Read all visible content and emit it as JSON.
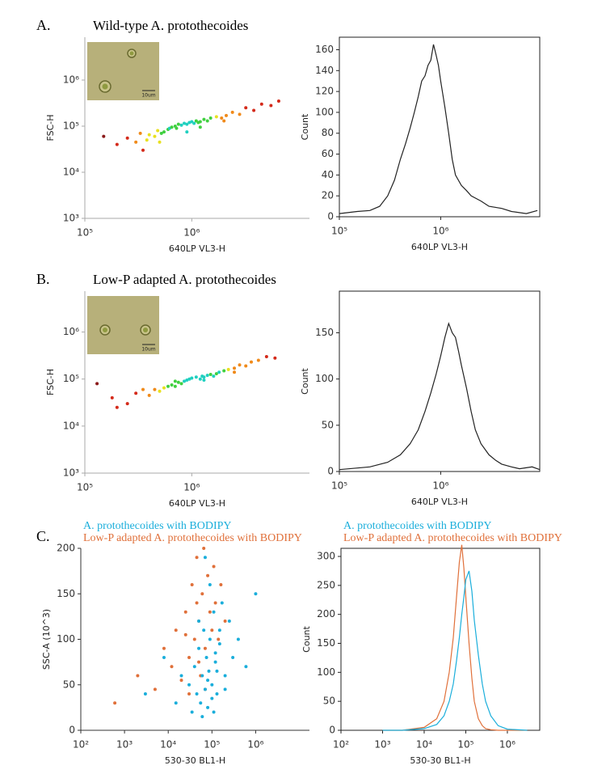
{
  "chart_data": [
    {
      "type": "scatter",
      "panel_label": "A.",
      "title": "Wild-type A. protothecoides",
      "inset_scale": "10um",
      "xlabel": "640LP VL3-H",
      "ylabel": "FSC-H",
      "xscale": "log",
      "yscale": "log",
      "xlim": [
        100000,
        12600000
      ],
      "ylim": [
        1000,
        8500000
      ],
      "xticks": [
        {
          "value": 100000,
          "label": "10⁵"
        },
        {
          "value": 1000000,
          "label": "10⁶"
        }
      ],
      "yticks": [
        {
          "value": 1000,
          "label": "10³"
        },
        {
          "value": 10000,
          "label": "10⁴"
        },
        {
          "value": 100000,
          "label": "10⁵"
        },
        {
          "value": 1000000,
          "label": "10⁶"
        }
      ],
      "color": "#8b1a1a",
      "density_colors": [
        "#8b1a1a",
        "#d42a1a",
        "#f08a1a",
        "#e8e020",
        "#40d040",
        "#20d0c0"
      ],
      "x": [
        150000,
        200000,
        250000,
        300000,
        330000,
        380000,
        400000,
        450000,
        480000,
        520000,
        550000,
        600000,
        620000,
        650000,
        700000,
        720000,
        750000,
        800000,
        850000,
        900000,
        950000,
        1000000,
        1050000,
        1100000,
        1150000,
        1200000,
        1300000,
        1400000,
        1500000,
        1700000,
        1900000,
        2100000,
        2400000,
        2800000,
        3200000,
        3800000,
        4500000,
        5500000,
        6500000,
        350000,
        500000,
        900000,
        1200000,
        2000000
      ],
      "values": [
        60000,
        40000,
        55000,
        45000,
        70000,
        50000,
        65000,
        60000,
        80000,
        70000,
        75000,
        85000,
        90000,
        95000,
        100000,
        90000,
        110000,
        105000,
        115000,
        110000,
        120000,
        125000,
        115000,
        130000,
        120000,
        125000,
        140000,
        130000,
        150000,
        160000,
        150000,
        170000,
        200000,
        180000,
        250000,
        220000,
        300000,
        280000,
        350000,
        30000,
        45000,
        75000,
        95000,
        130000
      ]
    },
    {
      "type": "line",
      "xlabel": "640LP VL3-H",
      "ylabel": "Count",
      "xscale": "log",
      "frame": true,
      "xlim": [
        100000,
        9500000
      ],
      "ylim": [
        0,
        172
      ],
      "xticks": [
        {
          "value": 100000,
          "label": "10⁵"
        },
        {
          "value": 1000000,
          "label": "10⁶"
        }
      ],
      "yticks": [
        0,
        20,
        40,
        60,
        80,
        100,
        120,
        140,
        160
      ],
      "color": "#222222",
      "x": [
        100000,
        150000,
        200000,
        250000,
        300000,
        350000,
        400000,
        450000,
        500000,
        550000,
        600000,
        650000,
        700000,
        750000,
        800000,
        850000,
        900000,
        950000,
        1000000,
        1100000,
        1200000,
        1300000,
        1400000,
        1600000,
        1800000,
        2000000,
        2500000,
        3000000,
        4000000,
        5000000,
        7000000,
        9000000
      ],
      "values": [
        3,
        5,
        6,
        10,
        20,
        35,
        55,
        70,
        85,
        100,
        115,
        130,
        135,
        145,
        150,
        165,
        155,
        145,
        130,
        105,
        80,
        55,
        40,
        30,
        25,
        20,
        15,
        10,
        8,
        5,
        3,
        6
      ]
    },
    {
      "type": "scatter",
      "panel_label": "B.",
      "title": "Low-P adapted A. protothecoides",
      "inset_scale": "10um",
      "xlabel": "640LP VL3-H",
      "ylabel": "FSC-H",
      "xscale": "log",
      "yscale": "log",
      "xlim": [
        100000,
        12600000
      ],
      "ylim": [
        1000,
        7400000
      ],
      "xticks": [
        {
          "value": 100000,
          "label": "10⁵"
        },
        {
          "value": 1000000,
          "label": "10⁶"
        }
      ],
      "yticks": [
        {
          "value": 1000,
          "label": "10³"
        },
        {
          "value": 10000,
          "label": "10⁴"
        },
        {
          "value": 100000,
          "label": "10⁵"
        },
        {
          "value": 1000000,
          "label": "10⁶"
        }
      ],
      "color": "#8b1a1a",
      "density_colors": [
        "#8b1a1a",
        "#d42a1a",
        "#f08a1a",
        "#e8e020",
        "#40d040",
        "#20d0c0"
      ],
      "x": [
        130000,
        180000,
        250000,
        300000,
        400000,
        450000,
        500000,
        550000,
        600000,
        650000,
        700000,
        750000,
        800000,
        850000,
        900000,
        950000,
        1000000,
        1100000,
        1200000,
        1250000,
        1300000,
        1400000,
        1500000,
        1600000,
        1700000,
        1800000,
        2000000,
        2200000,
        2500000,
        2800000,
        3200000,
        3600000,
        4200000,
        5000000,
        6000000,
        200000,
        350000,
        700000,
        1300000,
        2500000
      ],
      "values": [
        80000,
        40000,
        30000,
        50000,
        45000,
        60000,
        55000,
        65000,
        70000,
        75000,
        70000,
        85000,
        80000,
        90000,
        95000,
        100000,
        105000,
        110000,
        100000,
        115000,
        110000,
        120000,
        125000,
        115000,
        130000,
        140000,
        150000,
        160000,
        170000,
        200000,
        190000,
        230000,
        250000,
        300000,
        280000,
        25000,
        60000,
        90000,
        95000,
        140000
      ]
    },
    {
      "type": "line",
      "xlabel": "640LP VL3-H",
      "ylabel": "Count",
      "xscale": "log",
      "frame": true,
      "xlim": [
        100000,
        9500000
      ],
      "ylim": [
        0,
        195
      ],
      "xticks": [
        {
          "value": 100000,
          "label": "10⁵"
        },
        {
          "value": 1000000,
          "label": "10⁶"
        }
      ],
      "yticks": [
        0,
        50,
        100,
        150
      ],
      "color": "#222222",
      "x": [
        100000,
        200000,
        300000,
        400000,
        500000,
        600000,
        700000,
        800000,
        900000,
        1000000,
        1100000,
        1200000,
        1300000,
        1400000,
        1500000,
        1600000,
        1800000,
        2000000,
        2200000,
        2500000,
        3000000,
        3500000,
        4000000,
        5000000,
        6000000,
        8000000,
        9500000
      ],
      "values": [
        2,
        5,
        10,
        18,
        30,
        45,
        65,
        85,
        105,
        125,
        145,
        160,
        150,
        145,
        130,
        115,
        90,
        65,
        45,
        30,
        18,
        12,
        8,
        5,
        3,
        5,
        2
      ]
    },
    {
      "type": "scatter",
      "panel_label": "C.",
      "xlabel": "530-30 BL1-H",
      "ylabel": "SSC-A (10^3)",
      "xscale": "log",
      "xlim": [
        100,
        17000000
      ],
      "ylim": [
        0,
        200
      ],
      "xticks": [
        {
          "value": 100,
          "label": "10²"
        },
        {
          "value": 1000,
          "label": "10³"
        },
        {
          "value": 10000,
          "label": "10⁴"
        },
        {
          "value": 100000,
          "label": "10⁵"
        },
        {
          "value": 1000000,
          "label": "10⁶"
        }
      ],
      "yticks": [
        0,
        50,
        100,
        150,
        200
      ],
      "series": [
        {
          "name": "A. protothecoides with BODIPY",
          "color": "#1aaedb",
          "x": [
            3000,
            8000,
            15000,
            20000,
            30000,
            35000,
            40000,
            45000,
            50000,
            55000,
            60000,
            65000,
            70000,
            75000,
            80000,
            85000,
            90000,
            100000,
            110000,
            120000,
            130000,
            150000,
            170000,
            200000,
            250000,
            300000,
            400000,
            600000,
            1000000,
            60000,
            80000,
            100000,
            120000,
            70000,
            90000,
            150000,
            50000,
            200000,
            130000,
            110000
          ],
          "values": [
            40,
            80,
            30,
            60,
            50,
            20,
            70,
            40,
            90,
            30,
            60,
            110,
            45,
            80,
            25,
            65,
            100,
            50,
            130,
            75,
            40,
            95,
            140,
            60,
            120,
            80,
            100,
            70,
            150,
            15,
            55,
            35,
            85,
            190,
            160,
            110,
            120,
            45,
            65,
            20
          ]
        },
        {
          "name": "Low-P adapted A. protothecoides with BODIPY",
          "color": "#e0703a",
          "x": [
            600,
            2000,
            5000,
            8000,
            12000,
            15000,
            20000,
            25000,
            30000,
            35000,
            40000,
            45000,
            50000,
            55000,
            60000,
            65000,
            70000,
            80000,
            90000,
            100000,
            110000,
            120000,
            140000,
            160000,
            200000,
            30000,
            50000,
            70000,
            45000,
            25000
          ],
          "values": [
            30,
            60,
            45,
            90,
            70,
            110,
            55,
            130,
            80,
            160,
            100,
            190,
            120,
            60,
            150,
            200,
            90,
            170,
            130,
            110,
            180,
            140,
            100,
            160,
            120,
            40,
            75,
            45,
            140,
            105
          ]
        }
      ]
    },
    {
      "type": "line",
      "xlabel": "530-30 BL1-H",
      "ylabel": "Count",
      "xscale": "log",
      "frame": true,
      "xlim": [
        100,
        6000000
      ],
      "ylim": [
        0,
        314
      ],
      "xticks": [
        {
          "value": 100,
          "label": "10²"
        },
        {
          "value": 1000,
          "label": "10³"
        },
        {
          "value": 10000,
          "label": "10⁴"
        },
        {
          "value": 100000,
          "label": "10⁵"
        },
        {
          "value": 1000000,
          "label": "10⁶"
        }
      ],
      "yticks": [
        0,
        50,
        100,
        150,
        200,
        250,
        300
      ],
      "x": [
        1000,
        3000,
        10000,
        20000,
        30000,
        40000,
        50000,
        60000,
        70000,
        80000,
        90000,
        100000,
        120000,
        140000,
        160000,
        200000,
        250000,
        300000,
        400000,
        600000,
        1000000,
        3000000
      ],
      "series": [
        {
          "name": "A. protothecoides with BODIPY",
          "color": "#1aaedb",
          "values": [
            0,
            0,
            3,
            10,
            25,
            50,
            80,
            120,
            160,
            200,
            230,
            260,
            275,
            240,
            190,
            130,
            80,
            50,
            25,
            8,
            2,
            0
          ]
        },
        {
          "name": "Low-P adapted A. protothecoides with BODIPY",
          "color": "#e0703a",
          "values": [
            0,
            0,
            5,
            20,
            50,
            100,
            160,
            230,
            290,
            320,
            280,
            230,
            150,
            90,
            50,
            20,
            8,
            3,
            1,
            0,
            0,
            0
          ]
        }
      ]
    }
  ]
}
